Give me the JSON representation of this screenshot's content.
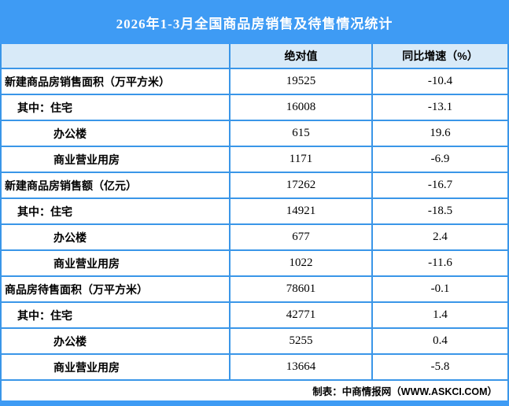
{
  "title": "2026年1-3月全国商品房销售及待售情况统计",
  "colors": {
    "accent_blue": "#3e9bf4",
    "header_bg": "#d8eaf8",
    "border_blue": "#3a96e8",
    "title_text": "#ffffff",
    "body_text": "#000000"
  },
  "footer": {
    "credit": "制表：中商情报网（WWW.ASKCI.COM）"
  },
  "chart_data": {
    "type": "table",
    "title": "2026年1-3月全国商品房销售及待售情况统计",
    "columns": [
      "",
      "绝对值",
      "同比增速（%）"
    ],
    "rows": [
      {
        "label": "新建商品房销售面积（万平方米）",
        "indent": 0,
        "absolute": "19525",
        "growth": "-10.4"
      },
      {
        "label": "其中：住宅",
        "indent": 1,
        "absolute": "16008",
        "growth": "-13.1"
      },
      {
        "label": "办公楼",
        "indent": 2,
        "absolute": "615",
        "growth": "19.6"
      },
      {
        "label": "商业营业用房",
        "indent": 2,
        "absolute": "1171",
        "growth": "-6.9"
      },
      {
        "label": "新建商品房销售额（亿元）",
        "indent": 0,
        "absolute": "17262",
        "growth": "-16.7"
      },
      {
        "label": "其中：住宅",
        "indent": 1,
        "absolute": "14921",
        "growth": "-18.5"
      },
      {
        "label": "办公楼",
        "indent": 2,
        "absolute": "677",
        "growth": "2.4"
      },
      {
        "label": "商业营业用房",
        "indent": 2,
        "absolute": "1022",
        "growth": "-11.6"
      },
      {
        "label": "商品房待售面积（万平方米）",
        "indent": 0,
        "absolute": "78601",
        "growth": "-0.1"
      },
      {
        "label": "其中：住宅",
        "indent": 1,
        "absolute": "42771",
        "growth": "1.4"
      },
      {
        "label": "办公楼",
        "indent": 2,
        "absolute": "5255",
        "growth": "0.4"
      },
      {
        "label": "商业营业用房",
        "indent": 2,
        "absolute": "13664",
        "growth": "-5.8"
      }
    ],
    "footer": "制表：中商情报网（WWW.ASKCI.COM）",
    "layout": {
      "grid": "on",
      "header_position": "top"
    }
  }
}
